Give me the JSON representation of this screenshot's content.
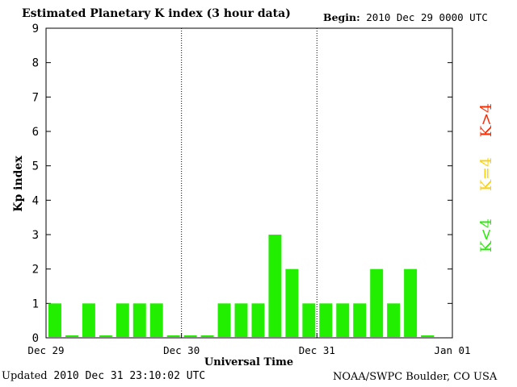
{
  "header": {
    "title": "Estimated Planetary K index (3 hour data)",
    "begin_label": "Begin:",
    "begin_value": "2010 Dec 29 0000 UTC"
  },
  "footer": {
    "updated_label": "Updated",
    "updated_value": "2010 Dec 31 23:10:02 UTC",
    "source": "NOAA/SWPC Boulder, CO USA"
  },
  "legend": [
    {
      "label": "K>4",
      "color": "#ff2a00"
    },
    {
      "label": "K=4",
      "color": "#ffd000"
    },
    {
      "label": "K<4",
      "color": "#22ee00"
    }
  ],
  "chart_data": {
    "type": "bar",
    "title": "Estimated Planetary K index (3 hour data)",
    "xlabel": "Universal Time",
    "ylabel": "Kp index",
    "ylim": [
      0,
      9
    ],
    "yticks": [
      0,
      1,
      2,
      3,
      4,
      5,
      6,
      7,
      8,
      9
    ],
    "xticks": [
      "Dec 29",
      "Dec 30",
      "Dec 31",
      "Jan 01"
    ],
    "interval_hours": 3,
    "days": 3,
    "bar_color": "#22ee00",
    "grid": "vertical dotted day separators",
    "values": [
      1,
      0,
      1,
      0,
      1,
      1,
      1,
      0,
      0,
      0,
      1,
      1,
      1,
      3,
      2,
      1,
      1,
      1,
      1,
      2,
      1,
      2,
      0
    ]
  }
}
